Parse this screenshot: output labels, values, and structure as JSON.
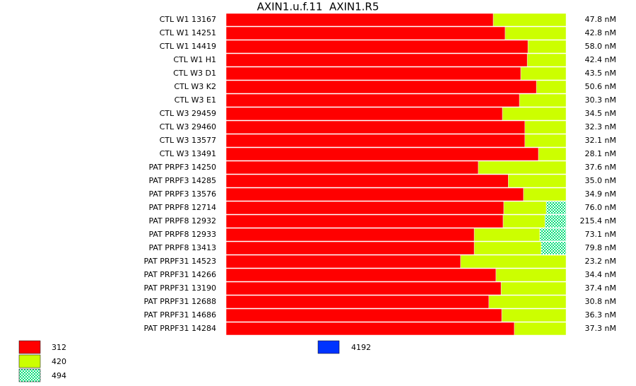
{
  "chart_data": {
    "type": "stacked-bar-horizontal",
    "title": "AXIN1.u.f.11  AXIN1.R5",
    "categories": [
      "CTL W1 13167",
      "CTL W1 14251",
      "CTL W1 14419",
      "CTL W1 H1",
      "CTL W3 D1",
      "CTL W3 K2",
      "CTL W3 E1",
      "CTL W3 29459",
      "CTL W3 29460",
      "CTL W3 13577",
      "CTL W3 13491",
      "PAT PRPF3 14250",
      "PAT PRPF3 14285",
      "PAT PRPF3 13576",
      "PAT PRPF8 12714",
      "PAT PRPF8 12932",
      "PAT PRPF8 12933",
      "PAT PRPF8 13413",
      "PAT PRPF31 14523",
      "PAT PRPF31 14266",
      "PAT PRPF31 13190",
      "PAT PRPF31 12688",
      "PAT PRPF31 14686",
      "PAT PRPF31 14284"
    ],
    "concentrations": [
      "47.8 nM",
      "42.8 nM",
      "58.0 nM",
      "42.4 nM",
      "43.5 nM",
      "50.6 nM",
      "30.3 nM",
      "34.5 nM",
      "32.3 nM",
      "32.1 nM",
      "28.1 nM",
      "37.6 nM",
      "35.0 nM",
      "34.9 nM",
      "76.0 nM",
      "215.4 nM",
      "73.1 nM",
      "79.8 nM",
      "23.2 nM",
      "34.4 nM",
      "37.4 nM",
      "30.8 nM",
      "36.3 nM",
      "37.3 nM"
    ],
    "xlim": [
      0,
      100
    ],
    "series": [
      {
        "name": "312",
        "color": "#ff0000",
        "values": [
          78.6,
          82.1,
          88.8,
          88.6,
          86.7,
          91.3,
          86.3,
          81.3,
          87.9,
          87.9,
          91.9,
          74.2,
          83.0,
          87.5,
          81.7,
          81.5,
          73.0,
          73.0,
          69.0,
          79.4,
          80.9,
          77.3,
          81.1,
          84.8
        ]
      },
      {
        "name": "420",
        "color": "#ccff00",
        "values": [
          21.4,
          17.9,
          11.2,
          11.4,
          13.3,
          8.7,
          13.7,
          18.7,
          12.1,
          12.1,
          8.1,
          25.8,
          17.0,
          12.5,
          12.5,
          12.3,
          19.3,
          19.7,
          31.0,
          20.6,
          19.1,
          22.7,
          18.9,
          15.2
        ]
      },
      {
        "name": "494",
        "color": "#00dd77",
        "hatch": true,
        "values": [
          null,
          null,
          null,
          null,
          null,
          null,
          null,
          null,
          null,
          null,
          null,
          null,
          null,
          null,
          5.8,
          6.2,
          7.7,
          7.3,
          null,
          null,
          null,
          null,
          null,
          null
        ]
      }
    ],
    "extra_legend": [
      {
        "name": "4192",
        "color": "#0033ff"
      }
    ]
  }
}
